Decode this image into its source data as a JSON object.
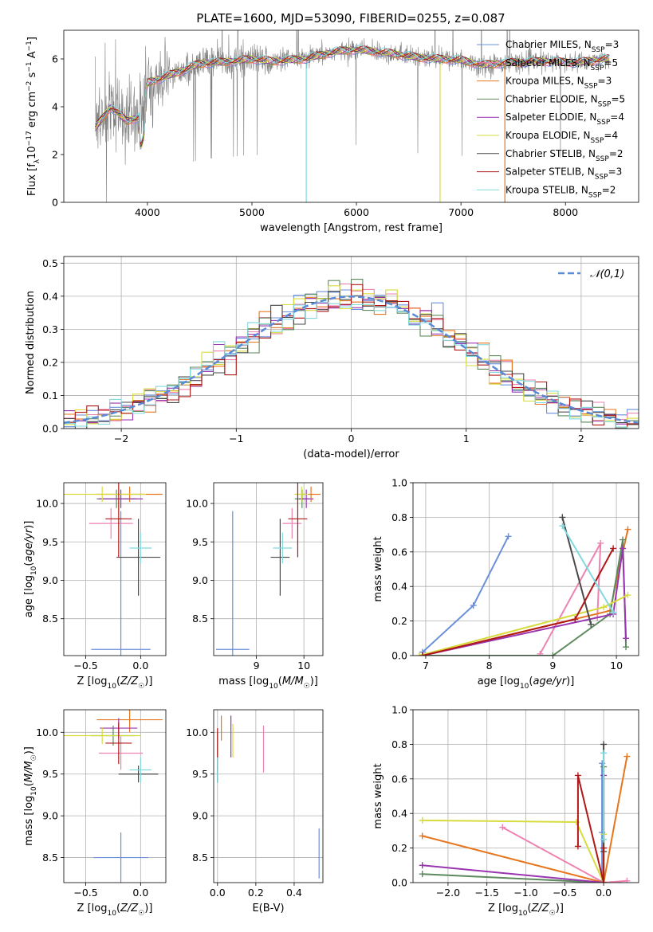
{
  "figure": {
    "title": "PLATE=1600, MJD=53090, FIBERID=0255, z=0.087"
  },
  "colors": {
    "Chabrier MILES": "#6a8fdb",
    "Salpeter MILES": "#ee82b0",
    "Kroupa MILES": "#e8761e",
    "Chabrier ELODIE": "#5d8a5d",
    "Salpeter ELODIE": "#9a35b0",
    "Kroupa ELODIE": "#d7dc3c",
    "Chabrier STELIB": "#4a4a4a",
    "Salpeter STELIB": "#b01818",
    "Kroupa STELIB": "#7fd9de",
    "data": "#808080"
  },
  "chart_data": [
    {
      "id": "spectrum",
      "type": "line",
      "title": "PLATE=1600, MJD=53090, FIBERID=0255, z=0.087",
      "xlabel": "wavelength [Angstrom, rest frame]",
      "ylabel": "Flux [f_λ 10^-17 erg cm^-2 s^-1 A^-1]",
      "xlim": [
        3200,
        8700
      ],
      "ylim": [
        0,
        7.2
      ],
      "xticks": [
        4000,
        5000,
        6000,
        7000,
        8000
      ],
      "yticks": [
        0,
        2,
        4,
        6
      ],
      "grid": false,
      "legend_position": "right",
      "legend": [
        {
          "model": "Chabrier MILES",
          "label": "Chabrier MILES, N_SSP=3",
          "prefix": "Chabrier MILES, N",
          "sub": "SSP",
          "suffix": "=3"
        },
        {
          "model": "Salpeter MILES",
          "label": "Salpeter MILES, N_SSP=5",
          "prefix": "Salpeter MILES, N",
          "sub": "SSP",
          "suffix": "=5"
        },
        {
          "model": "Kroupa MILES",
          "label": "Kroupa MILES, N_SSP=3",
          "prefix": "Kroupa MILES, N",
          "sub": "SSP",
          "suffix": "=3"
        },
        {
          "model": "Chabrier ELODIE",
          "label": "Chabrier ELODIE, N_SSP=5",
          "prefix": "Chabrier ELODIE, N",
          "sub": "SSP",
          "suffix": "=5"
        },
        {
          "model": "Salpeter ELODIE",
          "label": "Salpeter ELODIE, N_SSP=4",
          "prefix": "Salpeter ELODIE, N",
          "sub": "SSP",
          "suffix": "=4"
        },
        {
          "model": "Kroupa ELODIE",
          "label": "Kroupa ELODIE, N_SSP=4",
          "prefix": "Kroupa ELODIE, N",
          "sub": "SSP",
          "suffix": "=4"
        },
        {
          "model": "Chabrier STELIB",
          "label": "Chabrier STELIB, N_SSP=2",
          "prefix": "Chabrier STELIB, N",
          "sub": "SSP",
          "suffix": "=2"
        },
        {
          "model": "Salpeter STELIB",
          "label": "Salpeter STELIB, N_SSP=3",
          "prefix": "Salpeter STELIB, N",
          "sub": "SSP",
          "suffix": "=3"
        },
        {
          "model": "Kroupa STELIB",
          "label": "Kroupa STELIB, N_SSP=2",
          "prefix": "Kroupa STELIB, N",
          "sub": "SSP",
          "suffix": "=2"
        }
      ],
      "continuum_knots": {
        "wavelength": [
          3500,
          3650,
          3800,
          3950,
          4000,
          4200,
          4500,
          4800,
          5000,
          5200,
          5500,
          5800,
          6000,
          6300,
          6600,
          7000,
          7200,
          7500,
          7800,
          8100,
          8400
        ],
        "flux": [
          3.1,
          4.0,
          3.4,
          3.6,
          5.0,
          5.3,
          5.8,
          5.9,
          6.0,
          5.9,
          6.0,
          6.3,
          6.4,
          6.25,
          6.05,
          5.95,
          5.75,
          5.85,
          5.9,
          5.85,
          6.0
        ]
      }
    },
    {
      "id": "residuals",
      "type": "histogram",
      "xlabel": "(data-model)/error",
      "ylabel": "Normed distribution",
      "xlim": [
        -2.5,
        2.5
      ],
      "ylim": [
        0,
        0.52
      ],
      "xticks": [
        -2,
        -1,
        0,
        1,
        2
      ],
      "yticks": [
        0.0,
        0.1,
        0.2,
        0.3,
        0.4,
        0.5
      ],
      "grid": true,
      "legend_label": "𝒩(0,1)",
      "legend_position": "top-right",
      "bin_width": 0.1,
      "reference_curve": {
        "name": "𝒩(0,1)",
        "mean": 0,
        "sigma": 1
      }
    },
    {
      "id": "age-vs-Z",
      "type": "scatter",
      "xlabel": "Z [log10(Z/Z☉)]",
      "ylabel": "age [log10(age/yr)]",
      "xlim": [
        -0.7,
        0.23
      ],
      "ylim": [
        8.02,
        10.27
      ],
      "xticks": [
        -0.5,
        0.0
      ],
      "yticks": [
        8.5,
        9.0,
        9.5,
        10.0
      ],
      "grid": true,
      "points": [
        {
          "model": "Chabrier MILES",
          "x": -0.18,
          "y": 8.1,
          "xerr": 0.27,
          "yerr": 1.8
        },
        {
          "model": "Salpeter MILES",
          "x": -0.27,
          "y": 9.74,
          "xerr": 0.2,
          "yerr": 0.2
        },
        {
          "model": "Kroupa MILES",
          "x": -0.1,
          "y": 10.12,
          "xerr": 0.3,
          "yerr": 0.1
        },
        {
          "model": "Chabrier ELODIE",
          "x": -0.22,
          "y": 10.06,
          "xerr": 0.18,
          "yerr": 0.12
        },
        {
          "model": "Salpeter ELODIE",
          "x": -0.18,
          "y": 10.06,
          "xerr": 0.2,
          "yerr": 0.12
        },
        {
          "model": "Kroupa ELODIE",
          "x": -0.35,
          "y": 10.12,
          "xerr": 0.4,
          "yerr": 0.1
        },
        {
          "model": "Chabrier STELIB",
          "x": -0.02,
          "y": 9.3,
          "xerr": 0.2,
          "yerr": 0.5
        },
        {
          "model": "Salpeter STELIB",
          "x": -0.2,
          "y": 9.8,
          "xerr": 0.12,
          "yerr": 0.5
        },
        {
          "model": "Kroupa STELIB",
          "x": 0.0,
          "y": 9.42,
          "xerr": 0.1,
          "yerr": 0.2
        }
      ]
    },
    {
      "id": "age-vs-mass",
      "type": "scatter",
      "xlabel": "mass [log10(M/M☉)]",
      "ylabel": "",
      "xlim": [
        8.1,
        10.4
      ],
      "ylim": [
        8.02,
        10.27
      ],
      "xticks": [
        9,
        10
      ],
      "yticks": [
        8.5,
        9.0,
        9.5,
        10.0
      ],
      "grid": true,
      "points": [
        {
          "model": "Chabrier MILES",
          "x": 8.5,
          "y": 8.1,
          "xerr": 0.35,
          "yerr": 1.8
        },
        {
          "model": "Salpeter MILES",
          "x": 9.75,
          "y": 9.74,
          "xerr": 0.2,
          "yerr": 0.2
        },
        {
          "model": "Kroupa MILES",
          "x": 10.15,
          "y": 10.12,
          "xerr": 0.2,
          "yerr": 0.1
        },
        {
          "model": "Chabrier ELODIE",
          "x": 9.96,
          "y": 10.06,
          "xerr": 0.15,
          "yerr": 0.12
        },
        {
          "model": "Salpeter ELODIE",
          "x": 10.05,
          "y": 10.06,
          "xerr": 0.15,
          "yerr": 0.12
        },
        {
          "model": "Kroupa ELODIE",
          "x": 9.95,
          "y": 10.12,
          "xerr": 0.15,
          "yerr": 0.1
        },
        {
          "model": "Chabrier STELIB",
          "x": 9.5,
          "y": 9.3,
          "xerr": 0.2,
          "yerr": 0.5
        },
        {
          "model": "Salpeter STELIB",
          "x": 9.87,
          "y": 9.8,
          "xerr": 0.2,
          "yerr": 0.5
        },
        {
          "model": "Kroupa STELIB",
          "x": 9.55,
          "y": 9.42,
          "xerr": 0.2,
          "yerr": 0.2
        }
      ]
    },
    {
      "id": "weight-vs-age",
      "type": "line",
      "xlabel": "age [log10(age/yr)]",
      "ylabel": "mass weight",
      "xlim": [
        6.8,
        10.35
      ],
      "ylim": [
        0,
        1
      ],
      "xticks": [
        7,
        8,
        9,
        10
      ],
      "yticks": [
        0.0,
        0.2,
        0.4,
        0.6,
        0.8,
        1.0
      ],
      "grid": true,
      "series": [
        {
          "model": "Chabrier MILES",
          "x": [
            6.95,
            7.75,
            8.3
          ],
          "y": [
            0.02,
            0.29,
            0.69
          ]
        },
        {
          "model": "Salpeter MILES",
          "x": [
            8.8,
            9.75,
            9.7
          ],
          "y": [
            0.01,
            0.65,
            0.22
          ]
        },
        {
          "model": "Kroupa MILES",
          "x": [
            6.95,
            9.9,
            10.18
          ],
          "y": [
            0.0,
            0.26,
            0.73
          ]
        },
        {
          "model": "Chabrier ELODIE",
          "x": [
            6.95,
            9.0,
            9.9,
            10.1,
            10.15
          ],
          "y": [
            0.0,
            0.0,
            0.24,
            0.67,
            0.05
          ]
        },
        {
          "model": "Salpeter ELODIE",
          "x": [
            6.95,
            9.95,
            10.1,
            10.15
          ],
          "y": [
            0.0,
            0.24,
            0.62,
            0.1
          ]
        },
        {
          "model": "Kroupa ELODIE",
          "x": [
            6.9,
            9.8,
            10.18
          ],
          "y": [
            0.0,
            0.28,
            0.35
          ]
        },
        {
          "model": "Chabrier STELIB",
          "x": [
            9.15,
            9.6
          ],
          "y": [
            0.8,
            0.18
          ]
        },
        {
          "model": "Salpeter STELIB",
          "x": [
            6.95,
            9.35,
            9.95
          ],
          "y": [
            0.0,
            0.21,
            0.62
          ]
        },
        {
          "model": "Kroupa STELIB",
          "x": [
            9.15,
            9.95
          ],
          "y": [
            0.75,
            0.25
          ]
        }
      ]
    },
    {
      "id": "mass-vs-Z",
      "type": "scatter",
      "xlabel": "Z [log10(Z/Z☉)]",
      "ylabel": "mass [log10(M/M☉)]",
      "xlim": [
        -0.7,
        0.23
      ],
      "ylim": [
        8.2,
        10.27
      ],
      "xticks": [
        -0.5,
        0.0
      ],
      "yticks": [
        8.5,
        9.0,
        9.5,
        10.0
      ],
      "grid": true,
      "points": [
        {
          "model": "Chabrier MILES",
          "x": -0.18,
          "y": 8.5,
          "xerr": 0.25,
          "yerr": 0.3
        },
        {
          "model": "Salpeter MILES",
          "x": -0.18,
          "y": 9.75,
          "xerr": 0.2,
          "yerr": 0.2
        },
        {
          "model": "Kroupa MILES",
          "x": -0.1,
          "y": 10.15,
          "xerr": 0.3,
          "yerr": 0.15
        },
        {
          "model": "Chabrier ELODIE",
          "x": -0.25,
          "y": 9.96,
          "xerr": 0.2,
          "yerr": 0.12
        },
        {
          "model": "Salpeter ELODIE",
          "x": -0.2,
          "y": 10.05,
          "xerr": 0.17,
          "yerr": 0.12
        },
        {
          "model": "Kroupa ELODIE",
          "x": -0.35,
          "y": 9.96,
          "xerr": 0.35,
          "yerr": 0.1
        },
        {
          "model": "Chabrier STELIB",
          "x": -0.02,
          "y": 9.5,
          "xerr": 0.18,
          "yerr": 0.1
        },
        {
          "model": "Salpeter STELIB",
          "x": -0.2,
          "y": 9.87,
          "xerr": 0.12,
          "yerr": 0.25
        },
        {
          "model": "Kroupa STELIB",
          "x": 0.0,
          "y": 9.55,
          "xerr": 0.1,
          "yerr": 0.15
        }
      ]
    },
    {
      "id": "mass-vs-EBV",
      "type": "scatter",
      "xlabel": "E(B-V)",
      "ylabel": "",
      "xlim": [
        -0.02,
        0.55
      ],
      "ylim": [
        8.2,
        10.27
      ],
      "xticks": [
        0.0,
        0.2,
        0.4
      ],
      "yticks": [
        8.5,
        9.0,
        9.5,
        10.0
      ],
      "grid": true,
      "points": [
        {
          "model": "Chabrier MILES",
          "x": 0.53,
          "y": 8.55,
          "xerr": 0,
          "yerr": 0.3
        },
        {
          "model": "Salpeter MILES",
          "x": 0.24,
          "y": 9.8,
          "xerr": 0,
          "yerr": 0.28
        },
        {
          "model": "Kroupa MILES",
          "x": 0.02,
          "y": 10.05,
          "xerr": 0,
          "yerr": 0.15
        },
        {
          "model": "Chabrier ELODIE",
          "x": 0.0,
          "y": 9.7,
          "xerr": 0,
          "yerr": 0.3
        },
        {
          "model": "Salpeter ELODIE",
          "x": 0.07,
          "y": 9.95,
          "xerr": 0,
          "yerr": 0.25
        },
        {
          "model": "Kroupa ELODIE",
          "x": 0.08,
          "y": 9.9,
          "xerr": 0,
          "yerr": 0.2
        },
        {
          "model": "Chabrier STELIB",
          "x": 0.0,
          "y": 9.5,
          "xerr": 0,
          "yerr": 0.1
        },
        {
          "model": "Salpeter STELIB",
          "x": 0.0,
          "y": 9.8,
          "xerr": 0,
          "yerr": 0.25
        },
        {
          "model": "Kroupa STELIB",
          "x": 0.0,
          "y": 9.55,
          "xerr": 0,
          "yerr": 0.15
        }
      ]
    },
    {
      "id": "weight-vs-Z",
      "type": "line",
      "xlabel": "Z [log10(Z/Z☉)]",
      "ylabel": "mass weight",
      "xlim": [
        -2.45,
        0.45
      ],
      "ylim": [
        0,
        1
      ],
      "xticks": [
        -2.0,
        -1.5,
        -1.0,
        -0.5,
        0.0
      ],
      "yticks": [
        0.0,
        0.2,
        0.4,
        0.6,
        0.8,
        1.0
      ],
      "grid": true,
      "series": [
        {
          "model": "Chabrier MILES",
          "x": [
            -0.02,
            -0.02,
            -0.02
          ],
          "y": [
            0.69,
            0.29,
            0.0
          ]
        },
        {
          "model": "Salpeter MILES",
          "x": [
            -1.3,
            0.0,
            0.3
          ],
          "y": [
            0.32,
            0.0,
            0.01
          ]
        },
        {
          "model": "Kroupa MILES",
          "x": [
            0.3,
            0.0,
            -2.33
          ],
          "y": [
            0.73,
            0.0,
            0.27
          ]
        },
        {
          "model": "Chabrier ELODIE",
          "x": [
            -2.33,
            0.0,
            0.0
          ],
          "y": [
            0.05,
            0.0,
            0.67
          ]
        },
        {
          "model": "Salpeter ELODIE",
          "x": [
            -2.33,
            0.0,
            0.0
          ],
          "y": [
            0.1,
            0.0,
            0.62
          ]
        },
        {
          "model": "Kroupa ELODIE",
          "x": [
            -2.33,
            -0.35,
            0.0,
            0.0
          ],
          "y": [
            0.36,
            0.35,
            0.0,
            0.28
          ]
        },
        {
          "model": "Chabrier STELIB",
          "x": [
            0.0,
            0.0
          ],
          "y": [
            0.8,
            0.18
          ]
        },
        {
          "model": "Salpeter STELIB",
          "x": [
            -0.33,
            -0.33,
            0.0,
            0.0
          ],
          "y": [
            0.21,
            0.62,
            0.0,
            0.2
          ]
        },
        {
          "model": "Kroupa STELIB",
          "x": [
            0.0,
            0.0
          ],
          "y": [
            0.75,
            0.25
          ]
        }
      ]
    }
  ]
}
